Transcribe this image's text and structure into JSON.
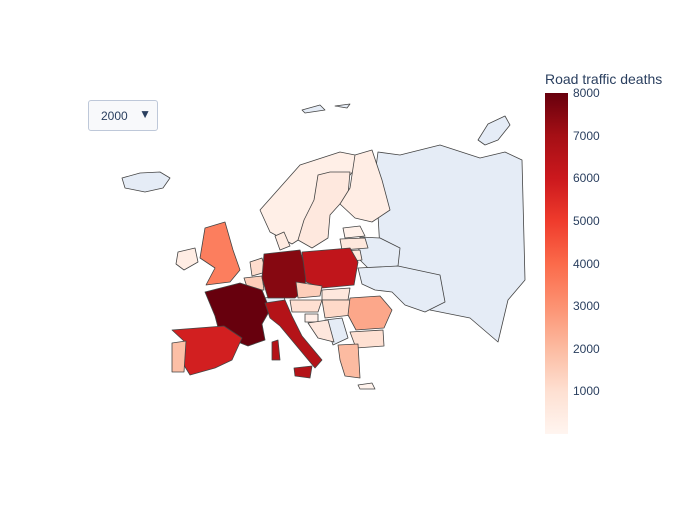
{
  "dropdown": {
    "selected": "2000",
    "arrow_icon": "triangle-down-icon"
  },
  "colorbar": {
    "title": "Road traffic deaths",
    "ticks": [
      "1000",
      "2000",
      "3000",
      "4000",
      "5000",
      "6000",
      "7000",
      "8000"
    ],
    "colorscale": [
      "#fff5f0",
      "#fee0d2",
      "#fcbba1",
      "#fc9272",
      "#fb6a4a",
      "#ef3b2c",
      "#cb181d",
      "#a50f15",
      "#67000d"
    ],
    "no_data_color": "#e5ecf6"
  },
  "chart_data": {
    "type": "choropleth",
    "region": "Europe",
    "year": "2000",
    "zmin": 0,
    "zmax": 8000,
    "colorbar_title": "Road traffic deaths",
    "countries": [
      {
        "name": "France",
        "value": 8100
      },
      {
        "name": "Germany",
        "value": 7500
      },
      {
        "name": "Italy",
        "value": 6600
      },
      {
        "name": "Poland",
        "value": 6300
      },
      {
        "name": "Spain",
        "value": 5800
      },
      {
        "name": "United Kingdom",
        "value": 3500
      },
      {
        "name": "Portugal",
        "value": 1900
      },
      {
        "name": "Romania",
        "value": 2500
      },
      {
        "name": "Greece",
        "value": 2000
      },
      {
        "name": "Belgium",
        "value": 1500
      },
      {
        "name": "Netherlands",
        "value": 1100
      },
      {
        "name": "Czech Republic",
        "value": 1500
      },
      {
        "name": "Hungary",
        "value": 1200
      },
      {
        "name": "Austria",
        "value": 1000
      },
      {
        "name": "Sweden",
        "value": 600
      },
      {
        "name": "Finland",
        "value": 400
      },
      {
        "name": "Norway",
        "value": 300
      },
      {
        "name": "Denmark",
        "value": 500
      },
      {
        "name": "Ireland",
        "value": 400
      },
      {
        "name": "Lithuania",
        "value": 640
      },
      {
        "name": "Latvia",
        "value": 630
      },
      {
        "name": "Estonia",
        "value": 200
      },
      {
        "name": "Bulgaria",
        "value": 1000
      },
      {
        "name": "Slovakia",
        "value": 650
      },
      {
        "name": "Slovenia",
        "value": 310
      },
      {
        "name": "Croatia",
        "value": 650
      },
      {
        "name": "Cyprus",
        "value": 110
      },
      {
        "name": "Switzerland",
        "value": null
      },
      {
        "name": "Russia",
        "value": null
      },
      {
        "name": "Belarus",
        "value": null
      },
      {
        "name": "Ukraine",
        "value": null
      },
      {
        "name": "Iceland",
        "value": null
      }
    ]
  }
}
